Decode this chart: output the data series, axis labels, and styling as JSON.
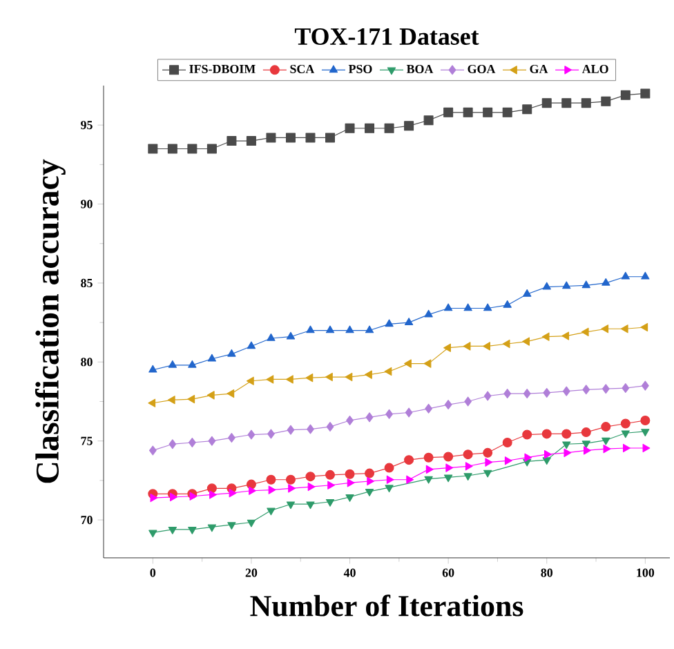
{
  "chart_data": {
    "type": "line",
    "title": "TOX-171 Dataset",
    "xlabel": "Number of Iterations",
    "ylabel": "Classification accuracy",
    "x": [
      0,
      4,
      8,
      12,
      16,
      20,
      24,
      28,
      32,
      36,
      40,
      44,
      48,
      52,
      56,
      60,
      64,
      68,
      72,
      76,
      80,
      84,
      88,
      92,
      96,
      100
    ],
    "xlim": [
      -10,
      105
    ],
    "ylim": [
      67.6,
      97.5
    ],
    "xticks": [
      0,
      20,
      40,
      60,
      80,
      100
    ],
    "yticks": [
      70,
      75,
      80,
      85,
      90,
      95
    ],
    "legend": "top",
    "grid": false,
    "line_style": "solid",
    "series": [
      {
        "name": "IFS-DBOIM",
        "color": "#4a4a4a",
        "marker": "square",
        "values": [
          93.5,
          93.5,
          93.5,
          93.5,
          94.0,
          94.0,
          94.2,
          94.2,
          94.2,
          94.2,
          94.8,
          94.8,
          94.8,
          94.95,
          95.3,
          95.8,
          95.8,
          95.8,
          95.8,
          96.0,
          96.4,
          96.4,
          96.4,
          96.5,
          96.9,
          97.0
        ]
      },
      {
        "name": "SCA",
        "color": "#e8383d",
        "marker": "circle",
        "values": [
          71.65,
          71.65,
          71.65,
          72.0,
          72.0,
          72.25,
          72.55,
          72.55,
          72.75,
          72.85,
          72.9,
          72.95,
          73.3,
          73.8,
          73.95,
          74.0,
          74.15,
          74.25,
          74.9,
          75.4,
          75.45,
          75.45,
          75.55,
          75.9,
          76.1,
          76.3
        ]
      },
      {
        "name": "PSO",
        "color": "#2266cc",
        "marker": "triangle",
        "values": [
          79.5,
          79.8,
          79.8,
          80.2,
          80.5,
          81.0,
          81.5,
          81.6,
          82.0,
          82.0,
          82.0,
          82.0,
          82.4,
          82.5,
          83.0,
          83.4,
          83.4,
          83.4,
          83.6,
          84.3,
          84.75,
          84.8,
          84.85,
          85.0,
          85.4,
          85.4
        ]
      },
      {
        "name": "BOA",
        "color": "#2e9b6a",
        "marker": "triangle-down",
        "values": [
          69.2,
          69.4,
          69.4,
          69.55,
          69.7,
          69.85,
          70.6,
          71.0,
          71.0,
          71.15,
          71.45,
          71.8,
          72.05,
          null,
          72.6,
          72.7,
          72.8,
          73.0,
          null,
          73.7,
          73.8,
          74.8,
          74.85,
          75.05,
          75.5,
          75.6
        ]
      },
      {
        "name": "GOA",
        "color": "#b07fd8",
        "marker": "diamond",
        "values": [
          74.4,
          74.8,
          74.9,
          75.0,
          75.2,
          75.4,
          75.45,
          75.7,
          75.75,
          75.9,
          76.3,
          76.5,
          76.7,
          76.8,
          77.05,
          77.3,
          77.5,
          77.85,
          78.0,
          78.0,
          78.05,
          78.15,
          78.25,
          78.3,
          78.35,
          78.5
        ]
      },
      {
        "name": "GA",
        "color": "#d4a017",
        "marker": "triangle-left",
        "values": [
          77.4,
          77.6,
          77.65,
          77.9,
          78.0,
          78.8,
          78.9,
          78.9,
          79.0,
          79.05,
          79.05,
          79.2,
          79.4,
          79.9,
          79.9,
          80.9,
          81.0,
          81.0,
          81.15,
          81.3,
          81.6,
          81.65,
          81.9,
          82.1,
          82.1,
          82.2
        ]
      },
      {
        "name": "ALO",
        "color": "#ff00ff",
        "marker": "triangle-right",
        "values": [
          71.4,
          71.45,
          71.5,
          71.6,
          71.7,
          71.85,
          71.9,
          72.0,
          72.1,
          72.2,
          72.35,
          72.45,
          72.55,
          72.55,
          73.2,
          73.3,
          73.4,
          73.65,
          73.75,
          73.95,
          74.15,
          74.25,
          74.4,
          74.5,
          74.55,
          74.55
        ]
      }
    ]
  }
}
